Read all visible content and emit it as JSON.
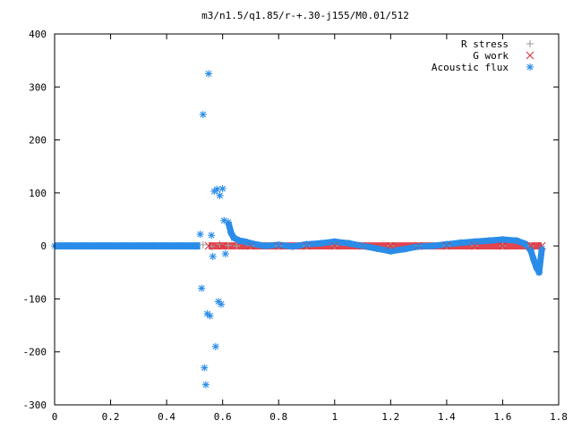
{
  "chart_data": {
    "type": "scatter",
    "title": "m3/n1.5/q1.85/r-+.30-j155/M0.01/512",
    "xlabel": "",
    "ylabel": "",
    "xlim": [
      0,
      1.8
    ],
    "ylim": [
      -300,
      400
    ],
    "x_ticks": [
      "0",
      "0.2",
      "0.4",
      "0.6",
      "0.8",
      "1",
      "1.2",
      "1.4",
      "1.6",
      "1.8"
    ],
    "y_ticks": [
      "400",
      "300",
      "200",
      "100",
      "0",
      "-100",
      "-200",
      "-300"
    ],
    "legend_position": "top-right",
    "series": [
      {
        "name": "R stress",
        "marker": "plus",
        "color": "#a0a0a4",
        "x": [
          0.53,
          0.56,
          0.59,
          0.62,
          0.65,
          0.7,
          0.8,
          0.9,
          1.0,
          1.1,
          1.2,
          1.3,
          1.4,
          1.5,
          1.6,
          1.7
        ],
        "y": [
          2,
          -1,
          3,
          1,
          0,
          0,
          0,
          0,
          0,
          0,
          0,
          0,
          0,
          0,
          0,
          0
        ]
      },
      {
        "name": "G work",
        "marker": "cross",
        "color": "#e0303a",
        "x": [
          0.55,
          0.6,
          0.7,
          0.8,
          0.9,
          1.0,
          1.1,
          1.2,
          1.3,
          1.4,
          1.5,
          1.6,
          1.7,
          1.74
        ],
        "y": [
          0,
          0,
          0,
          0,
          0,
          0,
          0,
          0,
          0,
          0,
          0,
          0,
          0,
          0
        ]
      },
      {
        "name": "Acoustic flux",
        "marker": "star",
        "color": "#2a8ce8",
        "x": [
          0.0,
          0.05,
          0.1,
          0.15,
          0.2,
          0.25,
          0.3,
          0.35,
          0.4,
          0.45,
          0.5,
          0.52,
          0.525,
          0.53,
          0.535,
          0.54,
          0.545,
          0.55,
          0.555,
          0.56,
          0.565,
          0.57,
          0.575,
          0.58,
          0.585,
          0.59,
          0.595,
          0.6,
          0.605,
          0.61,
          0.62,
          0.63,
          0.64,
          0.66,
          0.68,
          0.7,
          0.75,
          0.8,
          0.85,
          0.9,
          0.95,
          1.0,
          1.05,
          1.1,
          1.15,
          1.2,
          1.25,
          1.3,
          1.35,
          1.4,
          1.45,
          1.5,
          1.55,
          1.6,
          1.65,
          1.68,
          1.7,
          1.71,
          1.72,
          1.73,
          1.74
        ],
        "y": [
          0,
          0,
          0,
          0,
          0,
          0,
          0,
          0,
          0,
          0,
          0,
          22,
          -80,
          248,
          -230,
          -262,
          -128,
          325,
          -132,
          20,
          -20,
          103,
          -190,
          107,
          -105,
          95,
          -110,
          108,
          48,
          -15,
          45,
          25,
          15,
          10,
          8,
          5,
          0,
          2,
          -1,
          3,
          5,
          8,
          5,
          0,
          -5,
          -10,
          -6,
          -1,
          0,
          3,
          6,
          8,
          10,
          12,
          10,
          4,
          -8,
          -25,
          -40,
          -50,
          -5
        ]
      }
    ]
  }
}
